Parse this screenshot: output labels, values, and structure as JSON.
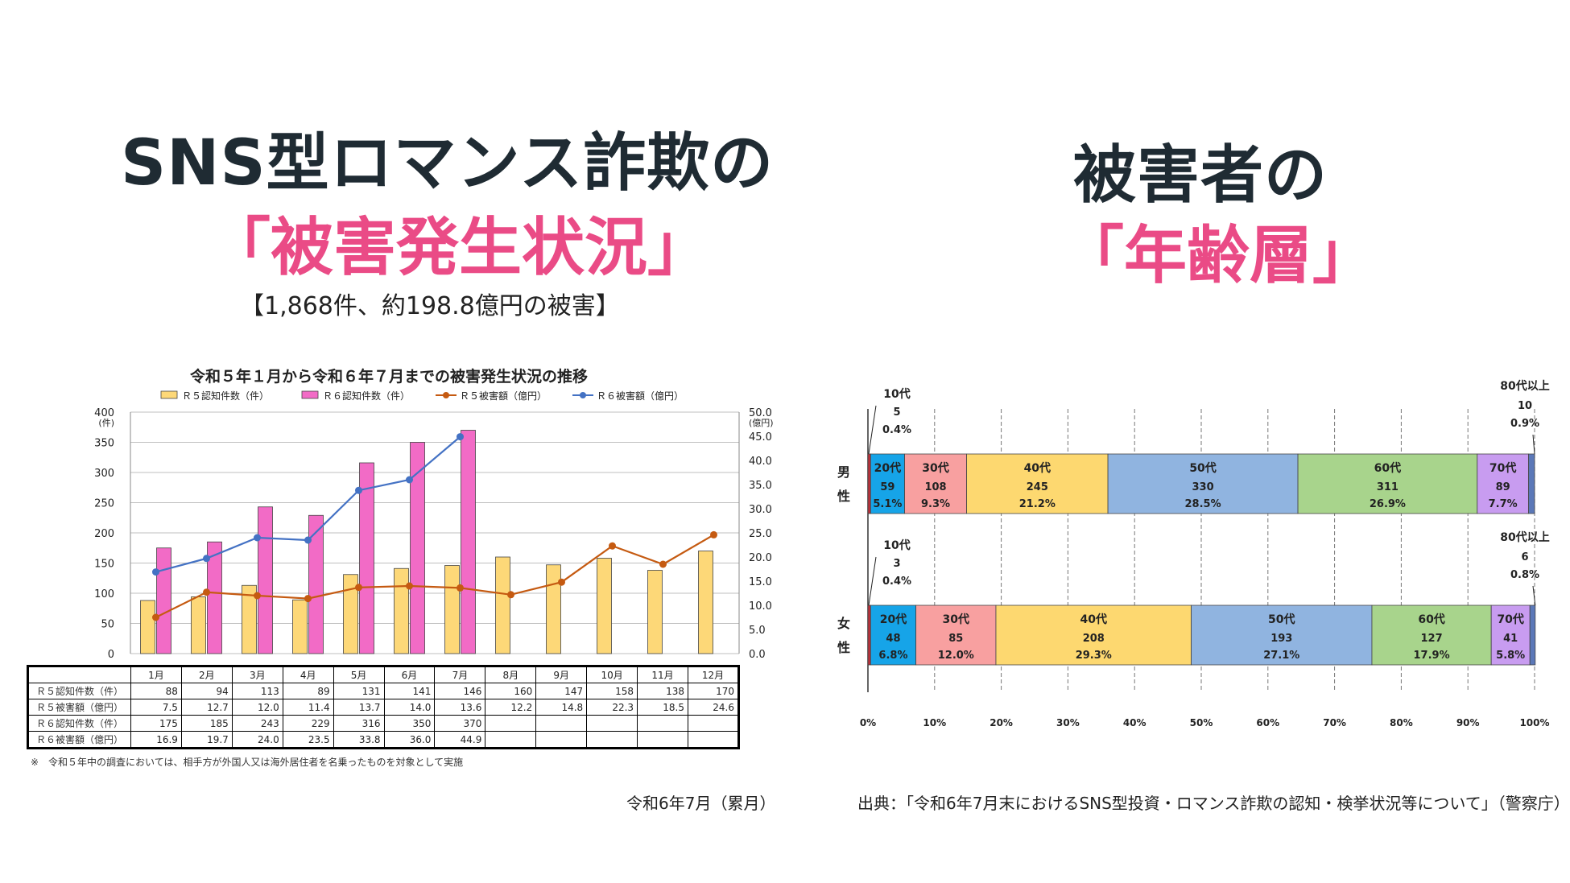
{
  "left": {
    "title_line1": "SNS型ロマンス詐欺の",
    "title_line2": "「被害発生状況」",
    "subtitle": "【1,868件、約198.8億円の被害】",
    "footer": "令和6年7月（累月）"
  },
  "right": {
    "title_line1": "被害者の",
    "title_line2": "「年齢層」",
    "footer": "出典：「令和6年7月末におけるSNS型投資・ロマンス詐欺の認知・検挙状況等について」（警察庁）"
  },
  "chart_data": [
    {
      "type": "bar",
      "title": "令和５年１月から令和６年７月までの被害発生状況の推移",
      "categories": [
        "1月",
        "2月",
        "3月",
        "4月",
        "5月",
        "6月",
        "7月",
        "8月",
        "9月",
        "10月",
        "11月",
        "12月"
      ],
      "yunit_left": "(件)",
      "yunit_right": "(億円)",
      "ylim_left": [
        0,
        400
      ],
      "yticks_left": [
        "0",
        "50",
        "100",
        "150",
        "200",
        "250",
        "300",
        "350",
        "400"
      ],
      "ylim_right": [
        0,
        50
      ],
      "yticks_right": [
        "0.0",
        "5.0",
        "10.0",
        "15.0",
        "20.0",
        "25.0",
        "30.0",
        "35.0",
        "40.0",
        "45.0",
        "50.0"
      ],
      "legend_placement": "top",
      "grid": true,
      "series": [
        {
          "name": "Ｒ５認知件数（件）",
          "kind": "bar",
          "color": "#fdd878",
          "values": [
            88,
            94,
            113,
            89,
            131,
            141,
            146,
            160,
            147,
            158,
            138,
            170
          ]
        },
        {
          "name": "Ｒ６認知件数（件）",
          "kind": "bar",
          "color": "#f26bc6",
          "values": [
            175,
            185,
            243,
            229,
            316,
            350,
            370,
            null,
            null,
            null,
            null,
            null
          ]
        },
        {
          "name": "Ｒ５被害額（億円）",
          "kind": "line",
          "color": "#c55a11",
          "values": [
            7.5,
            12.7,
            12.0,
            11.4,
            13.7,
            14.0,
            13.6,
            12.2,
            14.8,
            22.3,
            18.5,
            24.6
          ]
        },
        {
          "name": "Ｒ６被害額（億円）",
          "kind": "line",
          "color": "#4472c4",
          "values": [
            16.9,
            19.7,
            24.0,
            23.5,
            33.8,
            36.0,
            44.9,
            null,
            null,
            null,
            null,
            null
          ]
        }
      ],
      "table": {
        "rows": [
          {
            "label": "Ｒ５認知件数（件）",
            "cells": [
              "88",
              "94",
              "113",
              "89",
              "131",
              "141",
              "146",
              "160",
              "147",
              "158",
              "138",
              "170"
            ]
          },
          {
            "label": "Ｒ５被害額（億円）",
            "cells": [
              "7.5",
              "12.7",
              "12.0",
              "11.4",
              "13.7",
              "14.0",
              "13.6",
              "12.2",
              "14.8",
              "22.3",
              "18.5",
              "24.6"
            ]
          },
          {
            "label": "Ｒ６認知件数（件）",
            "cells": [
              "175",
              "185",
              "243",
              "229",
              "316",
              "350",
              "370",
              "",
              "",
              "",
              "",
              ""
            ]
          },
          {
            "label": "Ｒ６被害額（億円）",
            "cells": [
              "16.9",
              "19.7",
              "24.0",
              "23.5",
              "33.8",
              "36.0",
              "44.9",
              "",
              "",
              "",
              "",
              ""
            ]
          }
        ]
      },
      "note": "※　令和５年中の調査においては、相手方が外国人又は海外居住者を名乗ったものを対象として実施"
    },
    {
      "type": "bar",
      "orientation": "horizontal-stacked-100",
      "categories": [
        "男性",
        "女性"
      ],
      "xticks": [
        "0%",
        "10%",
        "20%",
        "30%",
        "40%",
        "50%",
        "60%",
        "70%",
        "80%",
        "90%",
        "100%"
      ],
      "segments_male": [
        {
          "age": "10代",
          "count": "5",
          "pct": "0.4%",
          "value": 0.4,
          "color": "#c0303a"
        },
        {
          "age": "20代",
          "count": "59",
          "pct": "5.1%",
          "value": 5.1,
          "color": "#16a4e8"
        },
        {
          "age": "30代",
          "count": "108",
          "pct": "9.3%",
          "value": 9.3,
          "color": "#f8a0a0"
        },
        {
          "age": "40代",
          "count": "245",
          "pct": "21.2%",
          "value": 21.2,
          "color": "#fdd870"
        },
        {
          "age": "50代",
          "count": "330",
          "pct": "28.5%",
          "value": 28.5,
          "color": "#90b4e0"
        },
        {
          "age": "60代",
          "count": "311",
          "pct": "26.9%",
          "value": 26.9,
          "color": "#a8d48c"
        },
        {
          "age": "70代",
          "count": "89",
          "pct": "7.7%",
          "value": 7.7,
          "color": "#c89cf0"
        },
        {
          "age": "80代以上",
          "count": "10",
          "pct": "0.9%",
          "value": 0.9,
          "color": "#5b78b8"
        }
      ],
      "segments_female": [
        {
          "age": "10代",
          "count": "3",
          "pct": "0.4%",
          "value": 0.4,
          "color": "#c0303a"
        },
        {
          "age": "20代",
          "count": "48",
          "pct": "6.8%",
          "value": 6.8,
          "color": "#16a4e8"
        },
        {
          "age": "30代",
          "count": "85",
          "pct": "12.0%",
          "value": 12.0,
          "color": "#f8a0a0"
        },
        {
          "age": "40代",
          "count": "208",
          "pct": "29.3%",
          "value": 29.3,
          "color": "#fdd870"
        },
        {
          "age": "50代",
          "count": "193",
          "pct": "27.1%",
          "value": 27.1,
          "color": "#90b4e0"
        },
        {
          "age": "60代",
          "count": "127",
          "pct": "17.9%",
          "value": 17.9,
          "color": "#a8d48c"
        },
        {
          "age": "70代",
          "count": "41",
          "pct": "5.8%",
          "value": 5.8,
          "color": "#c89cf0"
        },
        {
          "age": "80代以上",
          "count": "6",
          "pct": "0.8%",
          "value": 0.8,
          "color": "#5b78b8"
        }
      ]
    }
  ]
}
